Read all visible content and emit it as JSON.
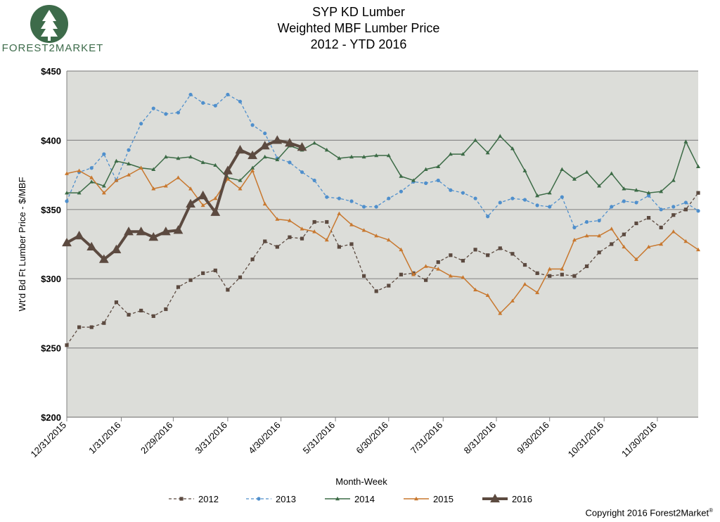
{
  "logo": {
    "text": "FOREST2MARKET"
  },
  "title_lines": [
    "SYP KD Lumber",
    "Weighted MBF Lumber Price",
    "2012 - YTD 2016"
  ],
  "copyright": "Copyright 2016 Forest2Market",
  "copyright_mark": "®",
  "chart_data": {
    "type": "line",
    "title": "SYP KD Lumber Weighted MBF Lumber Price 2012 - YTD 2016",
    "xlabel": "Month-Week",
    "ylabel": "Wt'd Bd Ft Lumber Price - $/MBF",
    "ylim": [
      200,
      450
    ],
    "y_ticks": [
      "$200",
      "$250",
      "$300",
      "$350",
      "$400",
      "$450"
    ],
    "x_ticks": [
      "12/31/2015",
      "1/31/2016",
      "2/29/2016",
      "3/31/2016",
      "4/30/2016",
      "5/31/2016",
      "6/30/2016",
      "7/31/2016",
      "8/31/2016",
      "9/30/2016",
      "10/31/2016",
      "11/30/2016"
    ],
    "x_tick_weeks": [
      0,
      4.4,
      8.6,
      13,
      17.3,
      21.7,
      26,
      30.4,
      34.7,
      39,
      43.4,
      47.7
    ],
    "weeks_visible": 51,
    "grid": "horizontal",
    "legend_position": "bottom",
    "colors": {
      "plot_bg": "#dcddd9",
      "grid": "#8c8c8c",
      "axis": "#808080"
    },
    "series": [
      {
        "name": "2012",
        "color": "#5c4a40",
        "dash": "4,3",
        "marker": "square",
        "width": 1.3,
        "values": [
          252,
          265,
          265,
          268,
          283,
          274,
          277,
          273,
          278,
          294,
          299,
          304,
          306,
          292,
          301,
          314,
          327,
          323,
          330,
          329,
          341,
          341,
          323,
          325,
          302,
          291,
          295,
          303,
          304,
          299,
          312,
          317,
          313,
          321,
          317,
          322,
          318,
          310,
          304,
          302,
          303,
          302,
          309,
          319,
          325,
          332,
          340,
          344,
          337,
          346,
          350,
          362
        ]
      },
      {
        "name": "2013",
        "color": "#4f8fcc",
        "dash": "4,3",
        "marker": "circle",
        "width": 1.3,
        "values": [
          356,
          377,
          380,
          390,
          371,
          393,
          412,
          423,
          419,
          420,
          433,
          427,
          425,
          433,
          428,
          411,
          405,
          387,
          384,
          377,
          371,
          359,
          358,
          356,
          352,
          352,
          358,
          363,
          370,
          369,
          371,
          364,
          362,
          358,
          345,
          355,
          358,
          357,
          353,
          352,
          359,
          337,
          341,
          342,
          352,
          356,
          355,
          360,
          350,
          352,
          355,
          349
        ]
      },
      {
        "name": "2014",
        "color": "#3c6b46",
        "dash": "",
        "marker": "triangle",
        "width": 1.5,
        "values": [
          362,
          362,
          370,
          367,
          385,
          383,
          380,
          379,
          388,
          387,
          388,
          384,
          382,
          373,
          371,
          380,
          388,
          386,
          396,
          393,
          398,
          393,
          387,
          388,
          388,
          389,
          389,
          374,
          371,
          379,
          381,
          390,
          390,
          400,
          391,
          403,
          394,
          378,
          360,
          362,
          379,
          372,
          377,
          367,
          376,
          365,
          364,
          362,
          363,
          371,
          399,
          381
        ]
      },
      {
        "name": "2015",
        "color": "#c8782f",
        "dash": "",
        "marker": "triangle",
        "width": 1.5,
        "values": [
          376,
          378,
          373,
          362,
          371,
          375,
          380,
          365,
          367,
          373,
          365,
          353,
          358,
          372,
          365,
          378,
          354,
          343,
          342,
          336,
          334,
          328,
          347,
          339,
          335,
          331,
          328,
          321,
          303,
          309,
          307,
          302,
          301,
          292,
          288,
          275,
          284,
          296,
          290,
          307,
          307,
          328,
          331,
          331,
          336,
          323,
          314,
          323,
          325,
          334,
          327,
          321
        ]
      },
      {
        "name": "2016",
        "color": "#5c4a40",
        "dash": "",
        "marker": "triangle",
        "width": 4,
        "values": [
          326,
          331,
          323,
          314,
          321,
          334,
          334,
          330,
          334,
          335,
          354,
          360,
          348,
          378,
          393,
          389,
          396,
          400,
          398,
          395
        ]
      }
    ]
  }
}
